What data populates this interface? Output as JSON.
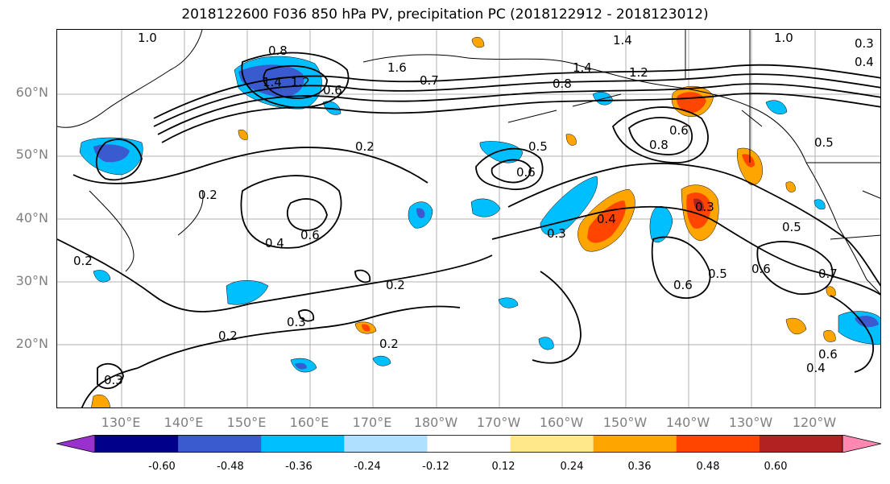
{
  "title": "2018122600 F036 850 hPa PV, precipitation PC (2018122912 - 2018123012)",
  "lat_labels": [
    "60°N",
    "50°N",
    "40°N",
    "30°N",
    "20°N"
  ],
  "lon_labels": [
    "130°E",
    "140°E",
    "150°E",
    "160°E",
    "170°E",
    "180°W",
    "170°W",
    "160°W",
    "150°W",
    "140°W",
    "130°W",
    "120°W"
  ],
  "colorbar": {
    "ticks": [
      "-0.60",
      "-0.48",
      "-0.36",
      "-0.24",
      "-0.12",
      "0.12",
      "0.24",
      "0.36",
      "0.48",
      "0.60"
    ],
    "colors": [
      "#9932cc",
      "#00008b",
      "#3a5bcf",
      "#00bfff",
      "#b0e0ff",
      "#ffffff",
      "#ffe88a",
      "#ffa500",
      "#ff4500",
      "#b22222",
      "#ff88b0"
    ]
  },
  "contour_labels": [
    "1.0",
    "0.8",
    "1.4",
    "1.2",
    "0.6",
    "1.6",
    "1.4",
    "0.7",
    "1.4",
    "1.2",
    "0.8",
    "1.0",
    "0.3",
    "0.4",
    "0.2",
    "0.5",
    "0.6",
    "0.8",
    "0.6",
    "0.5",
    "0.2",
    "0.4",
    "0.6",
    "0.3",
    "0.4",
    "0.3",
    "0.5",
    "0.7",
    "0.6",
    "0.6",
    "0.5",
    "0.2",
    "0.2",
    "0.3",
    "0.2",
    "0.6",
    "0.4",
    "0.2",
    "0.3"
  ]
}
